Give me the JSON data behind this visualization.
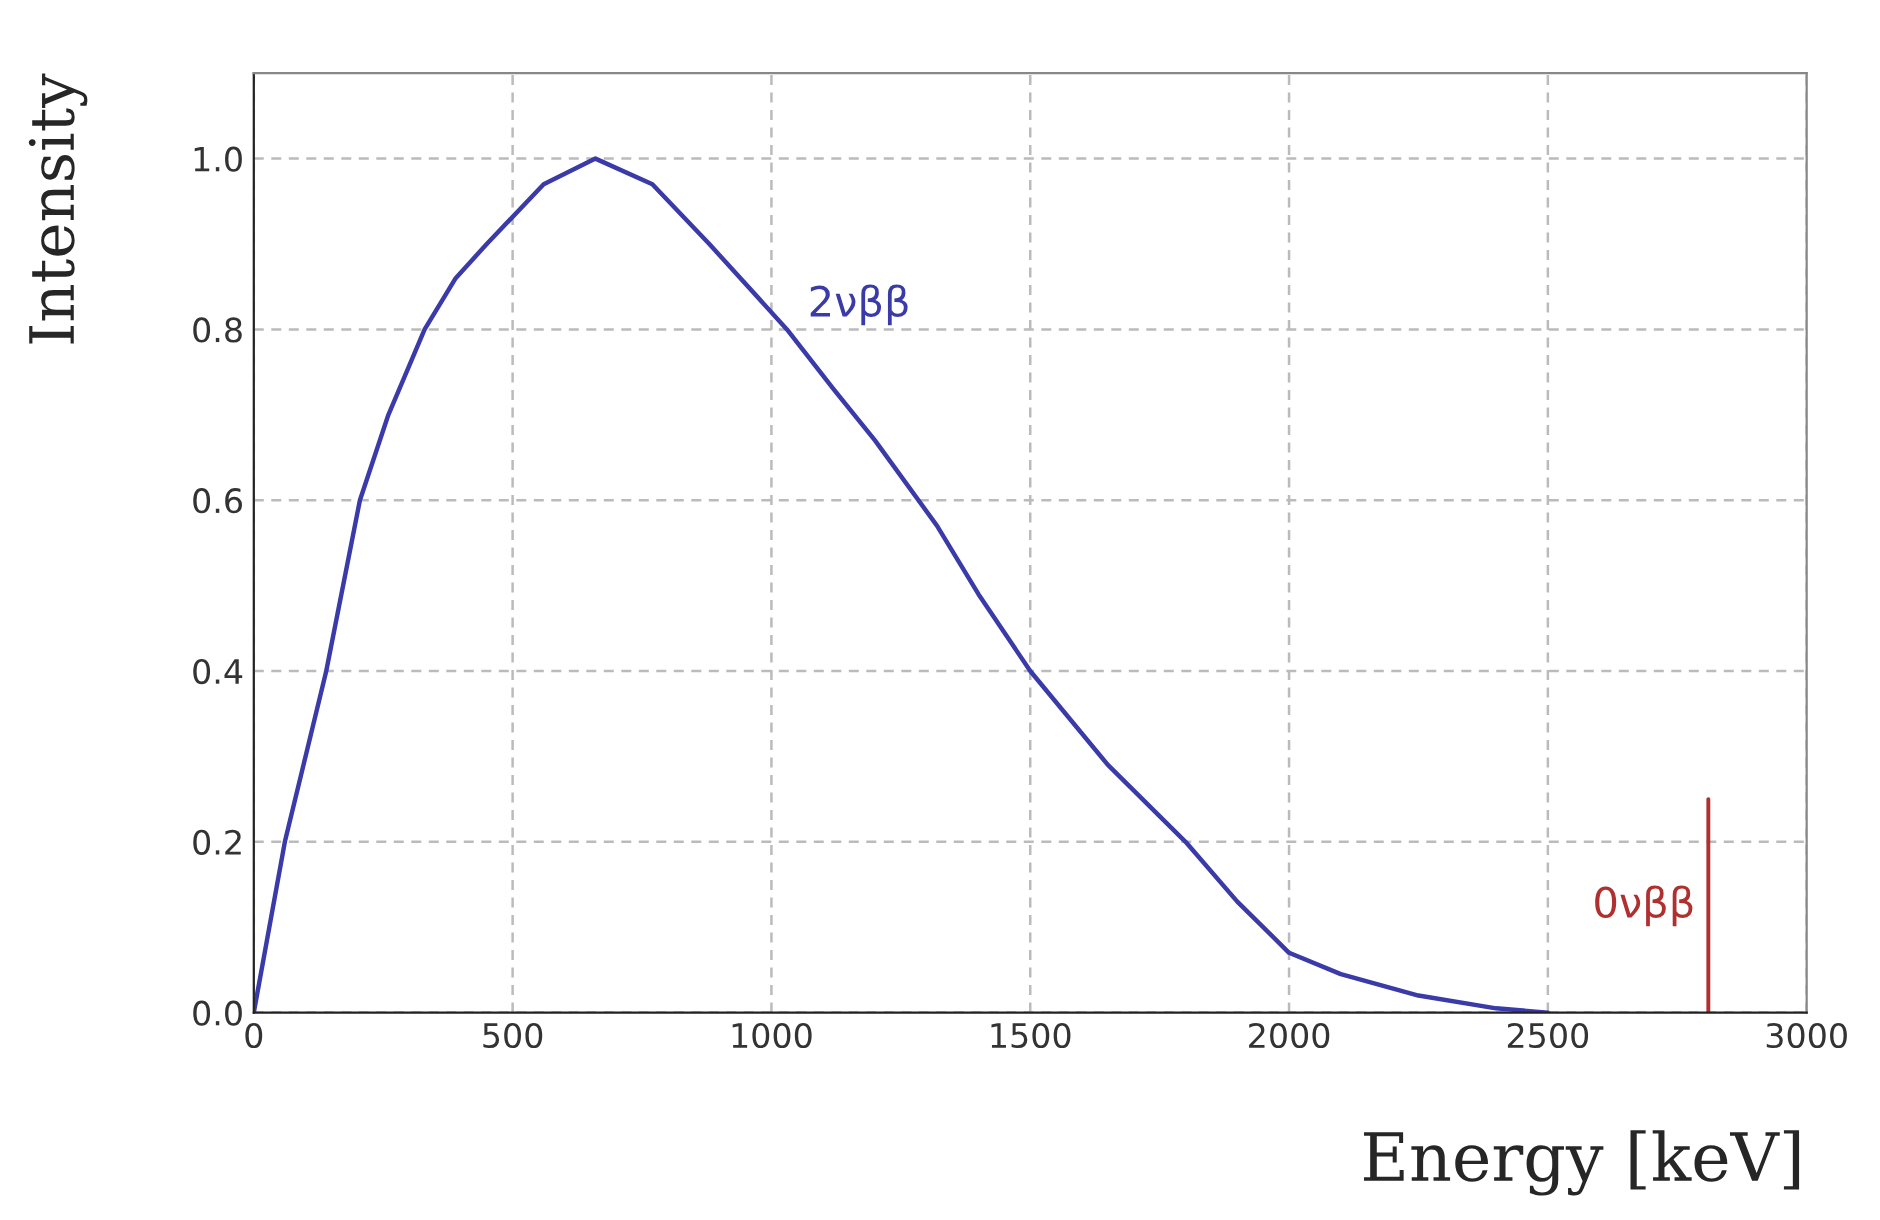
{
  "chart_data": {
    "type": "line",
    "xlabel": "Energy [keV]",
    "ylabel": "Intensity",
    "xlim": [
      0,
      3000
    ],
    "xticks": [
      0,
      500,
      1000,
      1500,
      2000,
      2500,
      3000
    ],
    "ylim": [
      0,
      1.1
    ],
    "yticks": [
      {
        "value": 0,
        "label": "0.0"
      },
      0.2,
      0.4,
      0.6,
      0.8,
      {
        "value": 1,
        "label": "1.0"
      }
    ],
    "grid": true,
    "marker": "none",
    "line_style": "solid",
    "series": [
      {
        "name": "2νββ",
        "color": "#3a3aa8",
        "x": [
          0,
          60,
          140,
          205,
          260,
          330,
          390,
          450,
          560,
          660,
          770,
          880,
          1030,
          1120,
          1200,
          1320,
          1400,
          1500,
          1650,
          1800,
          1900,
          2000,
          2100,
          2250,
          2400,
          2500
        ],
        "values": [
          0,
          0.2,
          0.4,
          0.6,
          0.7,
          0.8,
          0.86,
          0.9,
          0.97,
          1.0,
          0.97,
          0.9,
          0.8,
          0.73,
          0.67,
          0.57,
          0.49,
          0.4,
          0.29,
          0.2,
          0.13,
          0.07,
          0.045,
          0.02,
          0.005,
          0
        ]
      },
      {
        "name": "0νββ",
        "color": "#b03030",
        "x": [
          2810,
          2810
        ],
        "values": [
          0,
          0.25
        ]
      }
    ]
  }
}
